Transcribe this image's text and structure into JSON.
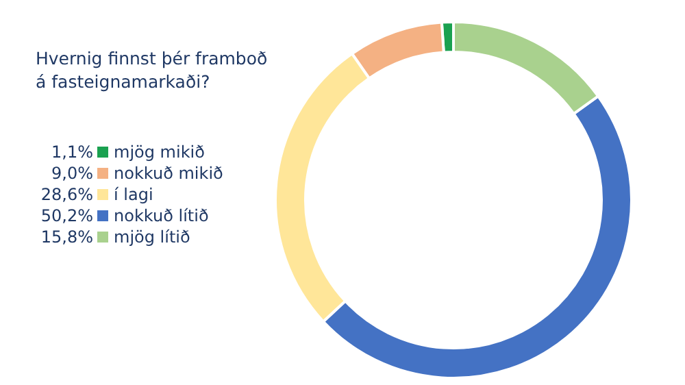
{
  "chart_data": {
    "type": "donut",
    "title": "Hvernig finnst þér framboð á fasteignamarkaði?",
    "categories": [
      "mjög mikið",
      "nokkuð mikið",
      "í lagi",
      "nokkuð lítið",
      "mjög lítið"
    ],
    "values": [
      1.1,
      9.0,
      28.6,
      50.2,
      15.8
    ],
    "value_labels": [
      "1,1%",
      "9,0%",
      "28,6%",
      "50,2%",
      "15,8%"
    ],
    "colors": [
      "#1aa150",
      "#f4b183",
      "#ffe699",
      "#4472c4",
      "#a9d18e"
    ],
    "legend": "left"
  }
}
